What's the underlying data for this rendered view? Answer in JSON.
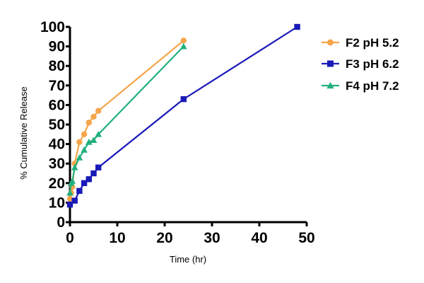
{
  "chart_data": {
    "type": "line",
    "title": "",
    "xlabel": "Time (hr)",
    "ylabel": "% Cumulative Release",
    "xlim": [
      0,
      50
    ],
    "ylim": [
      0,
      100
    ],
    "xticks": [
      "0",
      "10",
      "20",
      "30",
      "40",
      "50"
    ],
    "yticks": [
      "0",
      "10",
      "20",
      "30",
      "40",
      "50",
      "60",
      "70",
      "80",
      "90",
      "100"
    ],
    "grid": false,
    "legend_position": "right",
    "series": [
      {
        "name": "F2 pH 5.2",
        "color": "#f5a54a",
        "marker": "circle",
        "x": [
          0,
          0.25,
          0.5,
          1,
          2,
          3,
          4,
          5,
          6,
          24
        ],
        "y": [
          12,
          15,
          18,
          30,
          41,
          45,
          51,
          54,
          57,
          93
        ]
      },
      {
        "name": "F3 pH 6.2",
        "color": "#1a1ab8",
        "marker": "square",
        "x": [
          0,
          1,
          2,
          3,
          4,
          5,
          6,
          24,
          48
        ],
        "y": [
          9,
          11,
          16,
          20,
          22,
          25,
          28,
          63,
          100
        ]
      },
      {
        "name": "F4 pH 7.2",
        "color": "#22b07d",
        "marker": "triangle",
        "x": [
          0,
          0.25,
          0.5,
          1,
          2,
          3,
          4,
          5,
          6,
          24
        ],
        "y": [
          15,
          20,
          21,
          28,
          33,
          37,
          41,
          42,
          45,
          90
        ]
      }
    ]
  }
}
